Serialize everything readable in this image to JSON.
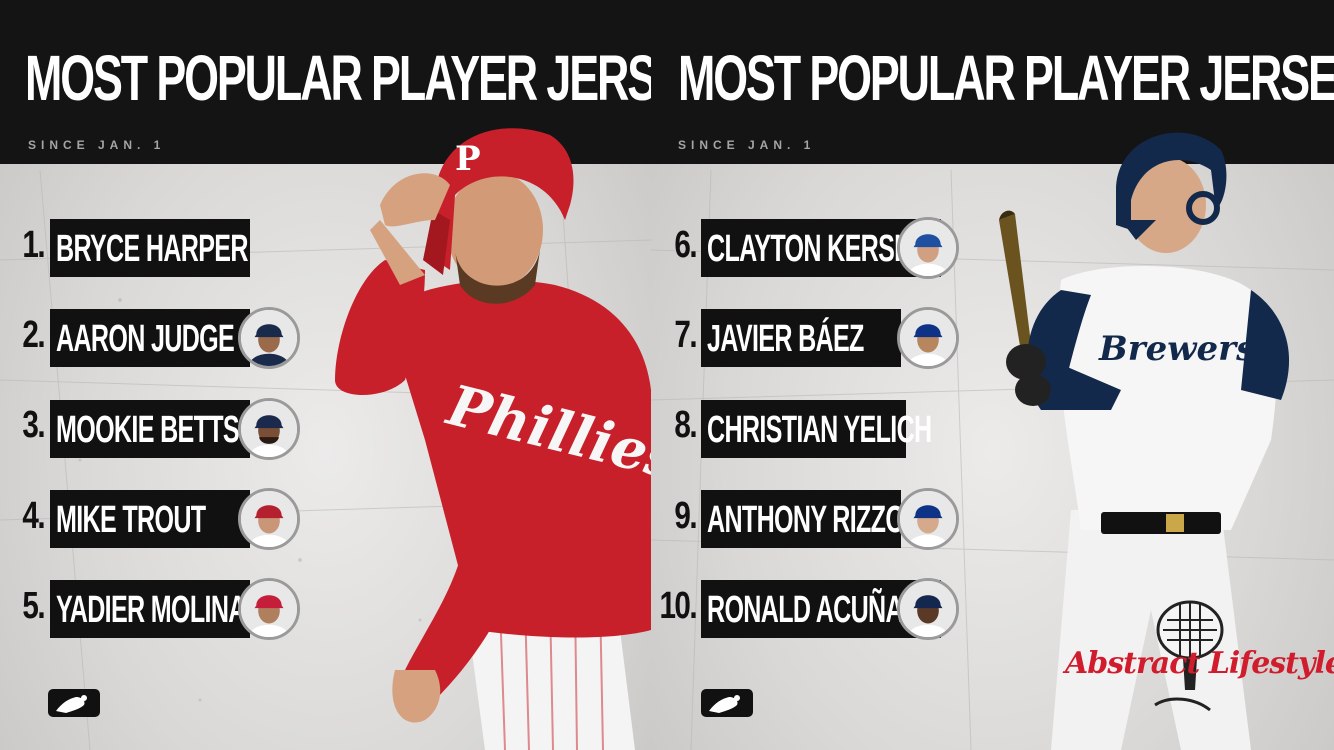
{
  "left_panel": {
    "title": "MOST POPULAR PLAYER JERSEYS",
    "subtitle": "SINCE JAN. 1",
    "entries": [
      {
        "rank": "1.",
        "name": "BRYCE HARPER"
      },
      {
        "rank": "2.",
        "name": "AARON JUDGE"
      },
      {
        "rank": "3.",
        "name": "MOOKIE BETTS"
      },
      {
        "rank": "4.",
        "name": "MIKE TROUT"
      },
      {
        "rank": "5.",
        "name": "YADIER MOLINA"
      }
    ]
  },
  "right_panel": {
    "title": "MOST POPULAR PLAYER JERSEYS",
    "subtitle": "SINCE JAN. 1",
    "entries": [
      {
        "rank": "6.",
        "name": "CLAYTON KERSHAW"
      },
      {
        "rank": "7.",
        "name": "JAVIER BÁEZ"
      },
      {
        "rank": "8.",
        "name": "CHRISTIAN YELICH"
      },
      {
        "rank": "9.",
        "name": "ANTHONY RIZZO"
      },
      {
        "rank": "10.",
        "name": "RONALD ACUÑA, JR."
      }
    ]
  },
  "brand": {
    "name": "Abstract Lifestyle"
  },
  "colors": {
    "header": "#141414",
    "bar": "#111111",
    "phillies_red": "#c8202a",
    "brewers_navy": "#13294b",
    "brand_red": "#d01c2c"
  },
  "icons": [
    "mlb-logo-icon",
    "microphone-icon",
    "player-headshot-icon"
  ]
}
